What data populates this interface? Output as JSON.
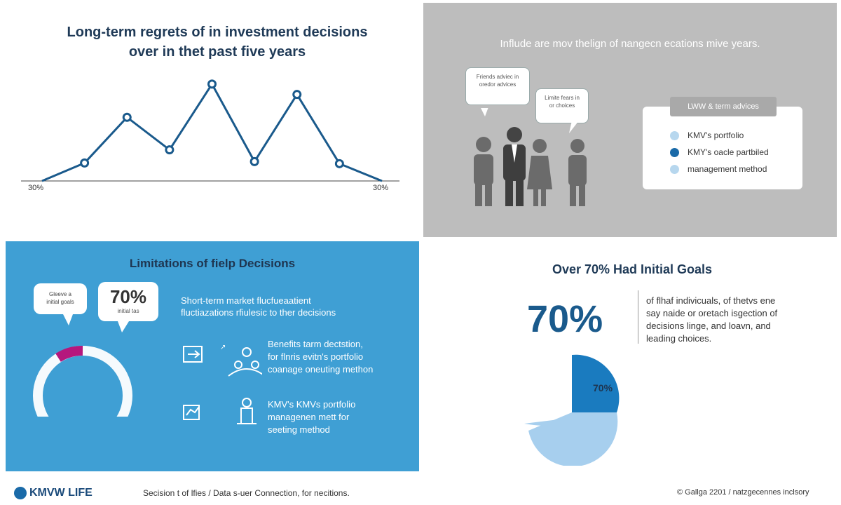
{
  "panel1": {
    "title_line1": "Long-term regrets of in investment decisions",
    "title_line2": "over in thet past five years",
    "left_axis_label": "30%",
    "right_axis_label": "30%",
    "line_color": "#1a5a8c"
  },
  "chart_data": {
    "type": "line",
    "title": "Long-term regrets of in investment decisions over in thet past five years",
    "x": [
      0,
      1,
      2,
      3,
      4,
      5,
      6,
      7,
      8
    ],
    "series": [
      {
        "values": [
          0,
          26,
          92,
          45,
          140,
          28,
          125,
          25,
          0
        ]
      }
    ],
    "ylim": [
      0,
      150
    ],
    "grid": false
  },
  "panel2": {
    "title": "Influde are mov thelign of nangecn ecations mive years.",
    "bubble1_line1": "Friends adviec in",
    "bubble1_line2": "oredor advices",
    "bubble2_line1": "Limite fears in",
    "bubble2_line2": "or choices",
    "legend_title": "LWW & term advices",
    "legend": [
      {
        "label": "KMV's portfolio",
        "color": "#b7d7ee"
      },
      {
        "label": "KMY's oacle partbiled",
        "color": "#1a6aa8"
      },
      {
        "label": "management method",
        "color": "#b7d7ee"
      }
    ]
  },
  "panel3": {
    "title": "Limitations of fielp Decisions",
    "bubble_small_line1": "Gleeve a",
    "bubble_small_line2": "initial goals",
    "bubble_big_pct": "70%",
    "bubble_big_sub": "initial tas",
    "text_line1": "Short-term market flucfueaatient",
    "text_line2": "fluctiazations rfiulesic to ther decisions",
    "item1_line1": "Benefits tarm dectstion,",
    "item1_line2": "for flnris evitn's portfolio",
    "item1_line3": "coanage oneuting methon",
    "item2_line1": "KMV's KMVs portfolio",
    "item2_line2": "managenen mett for",
    "item2_line3": "seeting method",
    "ring_color": "#ffffff",
    "ring_accent": "#b5177d"
  },
  "panel4": {
    "title": "Over 70% Had Initial Goals",
    "big_pct": "70%",
    "text_line1": "of flhaf indivicuals, of thetvs ene",
    "text_line2": "say naide or oretach isgection of",
    "text_line3": "decisions linge, and loavn, and",
    "text_line4": "leading choices.",
    "pie_label": "70%",
    "pie_dark": "#1a7bbf",
    "pie_light": "#a7cfee"
  },
  "footer": {
    "brand": "KMVW LIFE",
    "center": "Secision t of lfies / Data s-uer Connection, for necitions.",
    "right": "© Gallga 2201 / natzgecennes inclsory"
  }
}
